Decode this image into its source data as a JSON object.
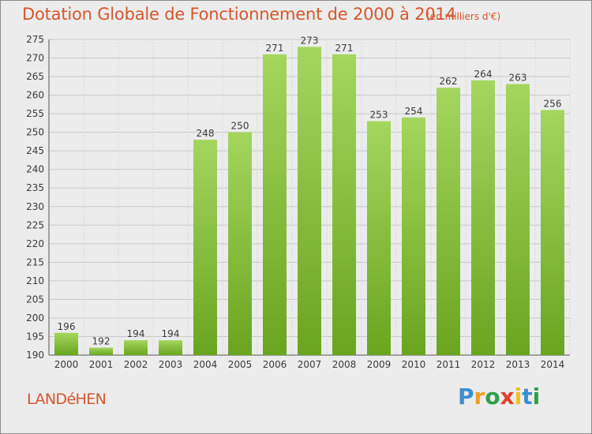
{
  "chart_data": {
    "type": "bar",
    "title": "Dotation Globale de Fonctionnement de 2000 à 2014",
    "subtitle": "(en milliers d'€)",
    "categories": [
      "2000",
      "2001",
      "2002",
      "2003",
      "2004",
      "2005",
      "2006",
      "2007",
      "2008",
      "2009",
      "2010",
      "2011",
      "2012",
      "2013",
      "2014"
    ],
    "values": [
      196,
      192,
      194,
      194,
      248,
      250,
      271,
      273,
      271,
      253,
      254,
      262,
      264,
      263,
      256
    ],
    "ylim": [
      190,
      275
    ],
    "yticks": [
      190,
      195,
      200,
      205,
      210,
      215,
      220,
      225,
      230,
      235,
      240,
      245,
      250,
      255,
      260,
      265,
      270,
      275
    ],
    "grid": true,
    "bar_color": "#7cb82f",
    "bar_color_light": "#a4d65e"
  },
  "footer": {
    "commune": "LANDéHEN",
    "logo_letters": [
      "P",
      "r",
      "o",
      "x",
      "i",
      "t",
      "i"
    ],
    "logo_colors": [
      "#3a8fd0",
      "#f0a020",
      "#2ea04a",
      "#e2402a",
      "#f0c020",
      "#3a8fd0",
      "#2ea04a"
    ]
  }
}
